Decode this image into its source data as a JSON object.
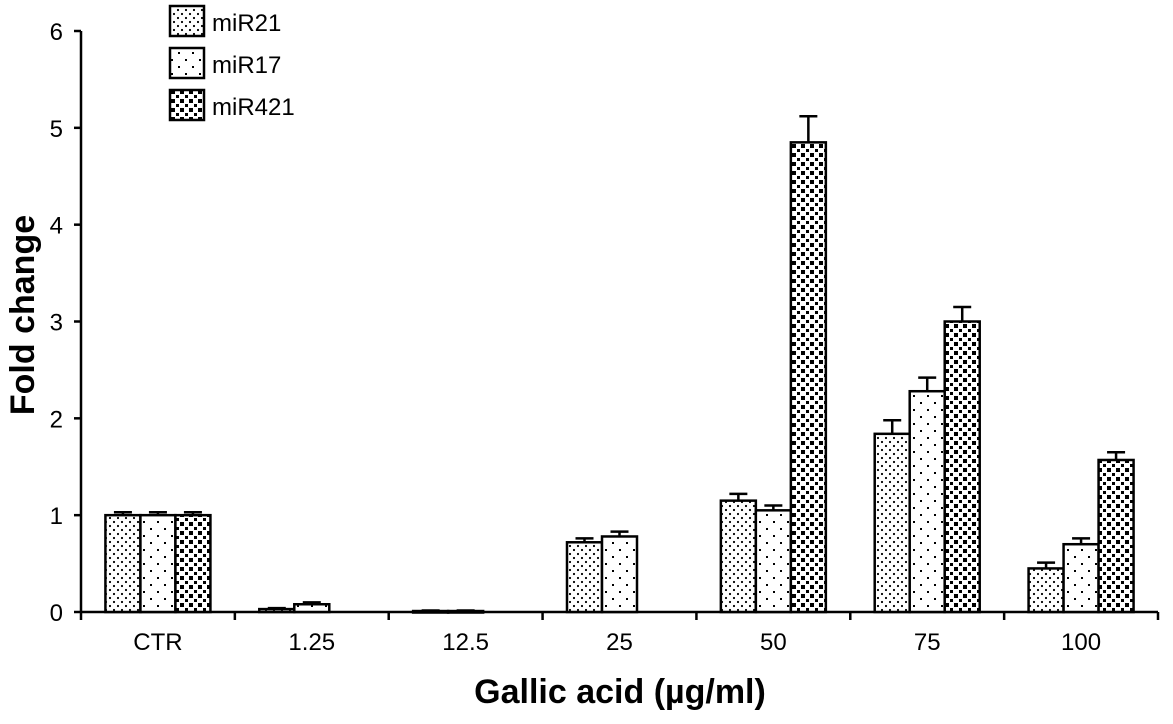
{
  "chart_data": {
    "type": "bar",
    "xlabel": "Gallic acid (µg/ml)",
    "ylabel": "Fold change",
    "ylim": [
      0,
      6
    ],
    "yticks": [
      "0",
      "1",
      "2",
      "3",
      "4",
      "5",
      "6"
    ],
    "categories": [
      "CTR",
      "1.25",
      "12.5",
      "25",
      "50",
      "75",
      "100"
    ],
    "legend_position": "top-left",
    "grid": false,
    "series": [
      {
        "name": "miR21",
        "pattern": "dots",
        "values": [
          1.0,
          0.03,
          0.01,
          0.72,
          1.15,
          1.84,
          0.45
        ],
        "errors": [
          0.03,
          0.01,
          0.005,
          0.04,
          0.07,
          0.14,
          0.06
        ]
      },
      {
        "name": "miR17",
        "pattern": "sparse-dots",
        "values": [
          1.0,
          0.08,
          0.01,
          0.78,
          1.05,
          2.28,
          0.7
        ],
        "errors": [
          0.03,
          0.02,
          0.005,
          0.05,
          0.05,
          0.14,
          0.06
        ]
      },
      {
        "name": "miR421",
        "pattern": "dense-squares",
        "values": [
          1.0,
          null,
          null,
          null,
          4.85,
          3.0,
          1.57
        ],
        "errors": [
          0.03,
          null,
          null,
          null,
          0.27,
          0.15,
          0.08
        ]
      }
    ]
  }
}
